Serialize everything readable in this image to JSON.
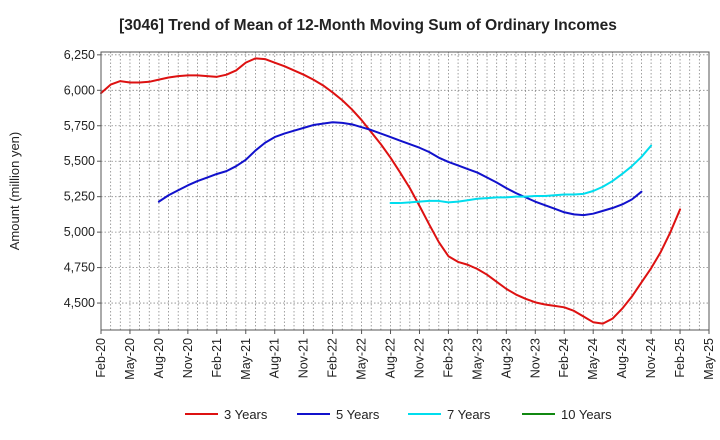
{
  "chart_data": {
    "type": "line",
    "title": "[3046]  Trend of Mean of 12-Month Moving Sum of Ordinary Incomes",
    "xlabel": "",
    "ylabel": "Amount (million yen)",
    "ylim": [
      4310,
      6270
    ],
    "yticks": [
      4500,
      4750,
      5000,
      5250,
      5500,
      5750,
      6000,
      6250
    ],
    "ytick_labels": [
      "4,500",
      "4,750",
      "5,000",
      "5,250",
      "5,500",
      "5,750",
      "6,000",
      "6,250"
    ],
    "x_categories": [
      "Feb-20",
      "May-20",
      "Aug-20",
      "Nov-20",
      "Feb-21",
      "May-21",
      "Aug-21",
      "Nov-21",
      "Feb-22",
      "May-22",
      "Aug-22",
      "Nov-22",
      "Feb-23",
      "May-23",
      "Aug-23",
      "Nov-23",
      "Feb-24",
      "May-24",
      "Aug-24",
      "Nov-24",
      "Feb-25",
      "May-25"
    ],
    "grid": true,
    "legend_position": "bottom",
    "series": [
      {
        "name": "3 Years",
        "color": "#dd1111",
        "start_index": 0,
        "values": [
          5980,
          6040,
          6065,
          6055,
          6055,
          6060,
          6075,
          6090,
          6100,
          6105,
          6105,
          6100,
          6095,
          6110,
          6140,
          6195,
          6225,
          6220,
          6195,
          6170,
          6140,
          6110,
          6075,
          6035,
          5985,
          5930,
          5865,
          5790,
          5705,
          5620,
          5525,
          5420,
          5310,
          5185,
          5055,
          4930,
          4830,
          4790,
          4770,
          4740,
          4700,
          4650,
          4600,
          4560,
          4530,
          4505,
          4490,
          4480,
          4470,
          4445,
          4405,
          4365,
          4355,
          4390,
          4460,
          4545,
          4645,
          4745,
          4860,
          5000,
          5160
        ]
      },
      {
        "name": "5 Years",
        "color": "#1111cc",
        "start_index": 6,
        "values": [
          5215,
          5260,
          5295,
          5330,
          5360,
          5385,
          5410,
          5430,
          5465,
          5510,
          5575,
          5630,
          5670,
          5695,
          5715,
          5735,
          5755,
          5765,
          5775,
          5770,
          5760,
          5740,
          5720,
          5695,
          5670,
          5645,
          5620,
          5595,
          5565,
          5525,
          5495,
          5470,
          5445,
          5420,
          5385,
          5350,
          5310,
          5275,
          5245,
          5215,
          5190,
          5165,
          5140,
          5125,
          5120,
          5130,
          5150,
          5170,
          5195,
          5230,
          5285
        ]
      },
      {
        "name": "7 Years",
        "color": "#00ddee",
        "start_index": 30,
        "values": [
          5205,
          5205,
          5210,
          5215,
          5220,
          5220,
          5210,
          5215,
          5225,
          5235,
          5240,
          5245,
          5245,
          5250,
          5250,
          5255,
          5255,
          5260,
          5265,
          5265,
          5270,
          5290,
          5320,
          5360,
          5410,
          5465,
          5530,
          5610
        ]
      },
      {
        "name": "10 Years",
        "color": "#118811",
        "start_index": 0,
        "values": []
      }
    ]
  }
}
